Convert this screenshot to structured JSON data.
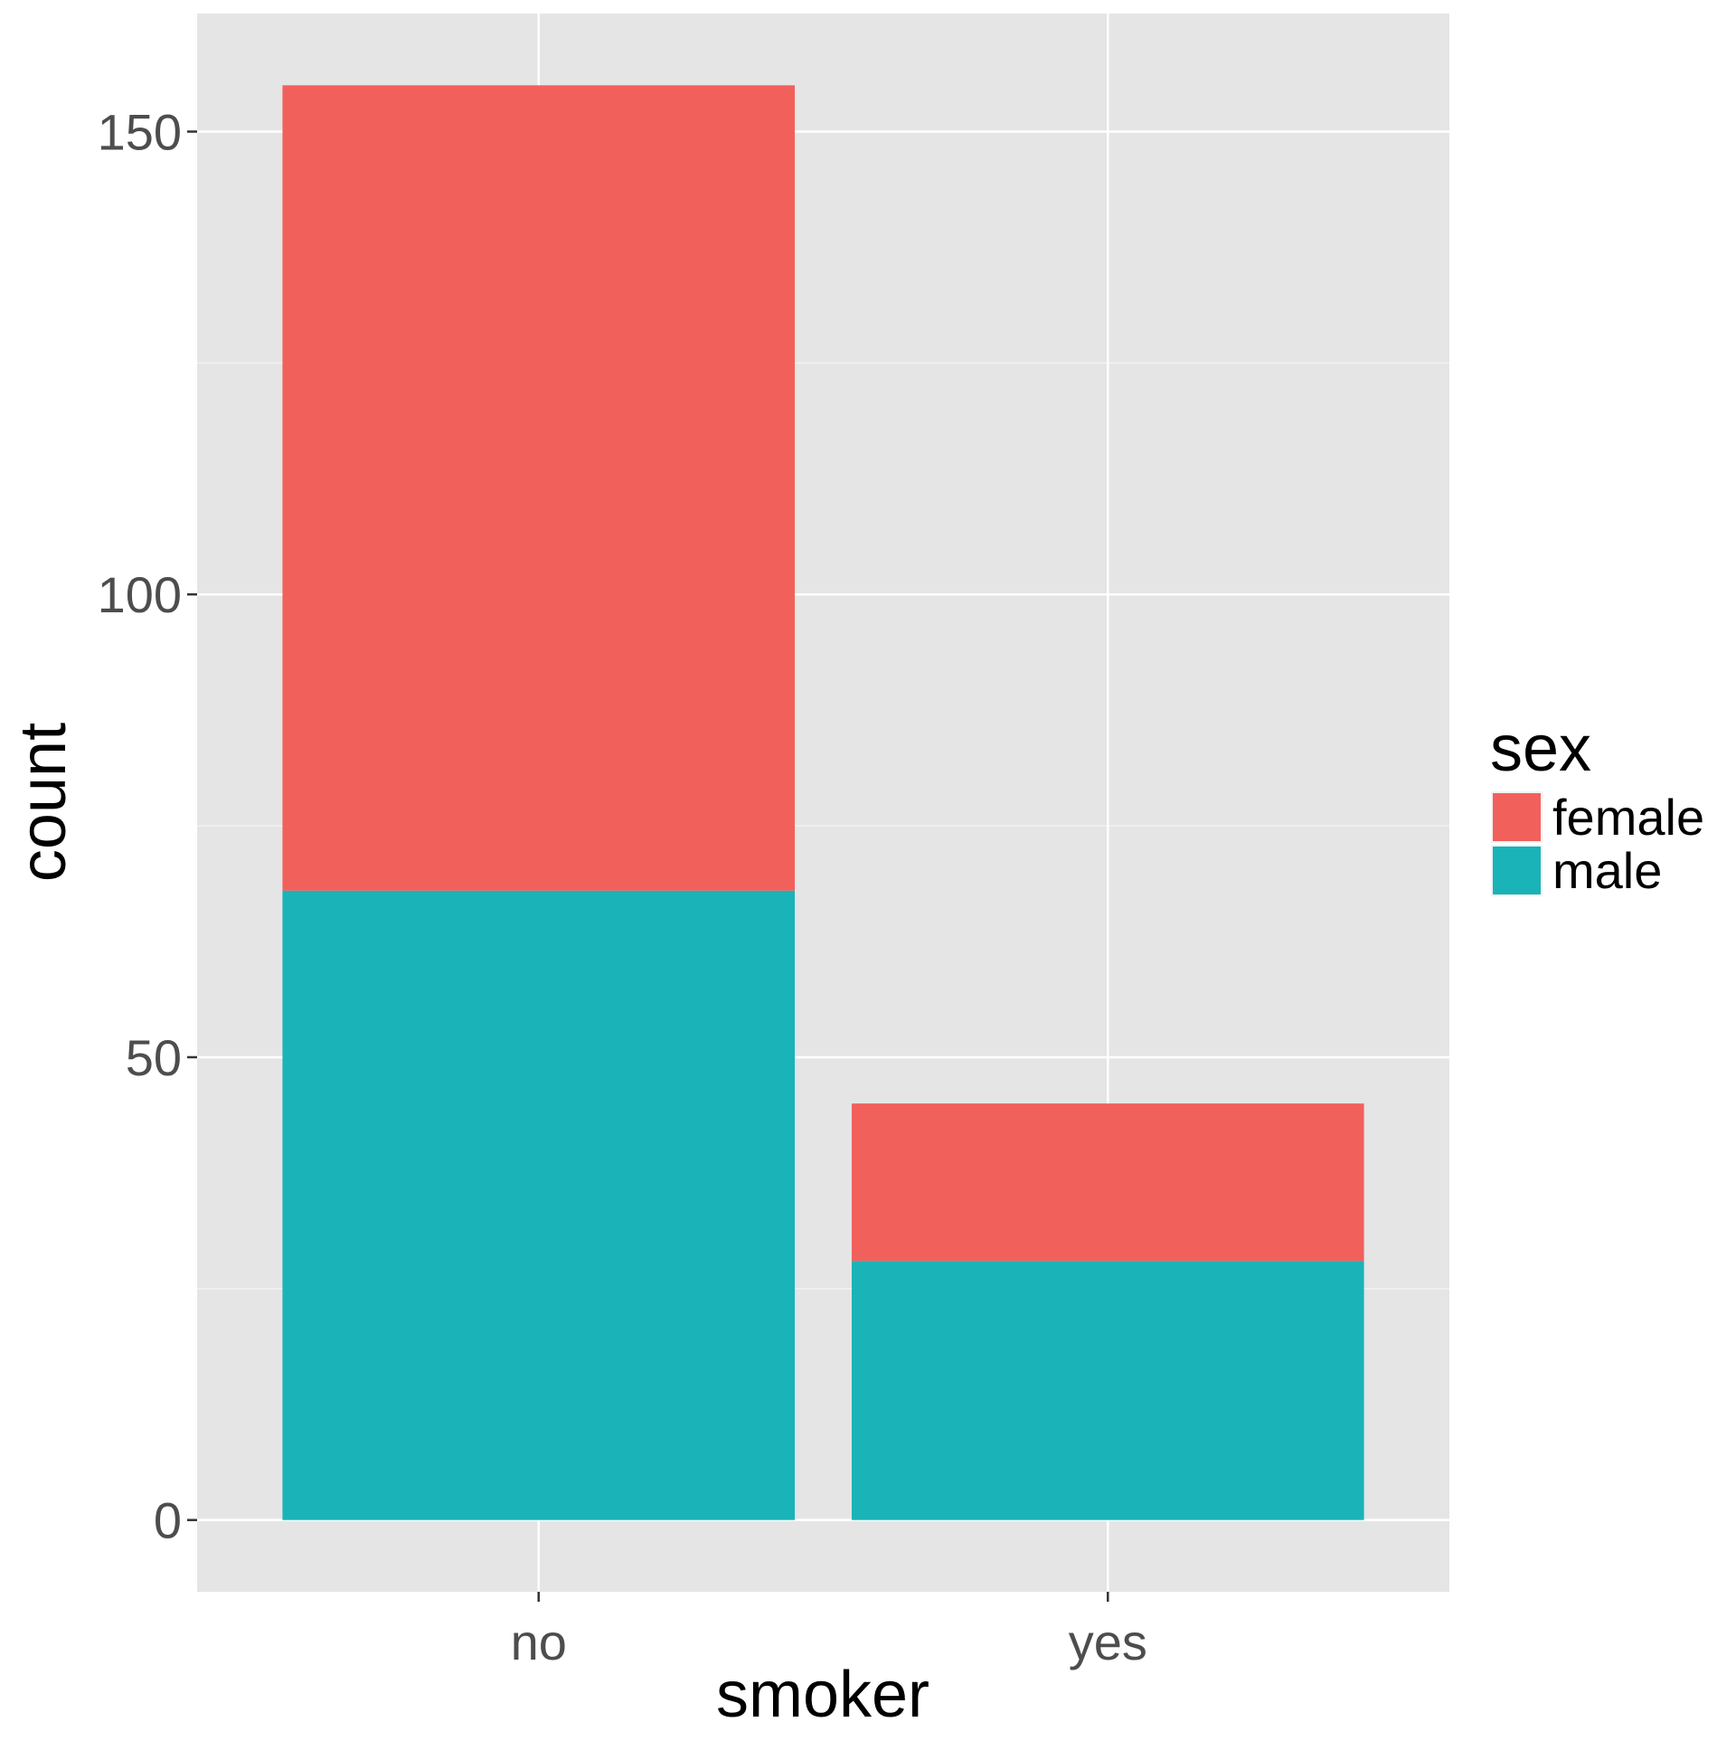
{
  "chart_data": {
    "type": "bar",
    "stacked": true,
    "categories": [
      "no",
      "yes"
    ],
    "series": [
      {
        "name": "female",
        "values": [
          87,
          17
        ],
        "color": "#F2605C"
      },
      {
        "name": "male",
        "values": [
          68,
          28
        ],
        "color": "#1AB3B8"
      }
    ],
    "xlabel": "smoker",
    "ylabel": "count",
    "yticks": [
      0,
      50,
      100,
      150
    ],
    "ylim": [
      -7.75,
      162.75
    ],
    "grid": true,
    "legend": {
      "title": "sex",
      "placement": "right"
    },
    "panel_background": "#E5E5E5",
    "gridline_color": "#FFFFFF"
  }
}
